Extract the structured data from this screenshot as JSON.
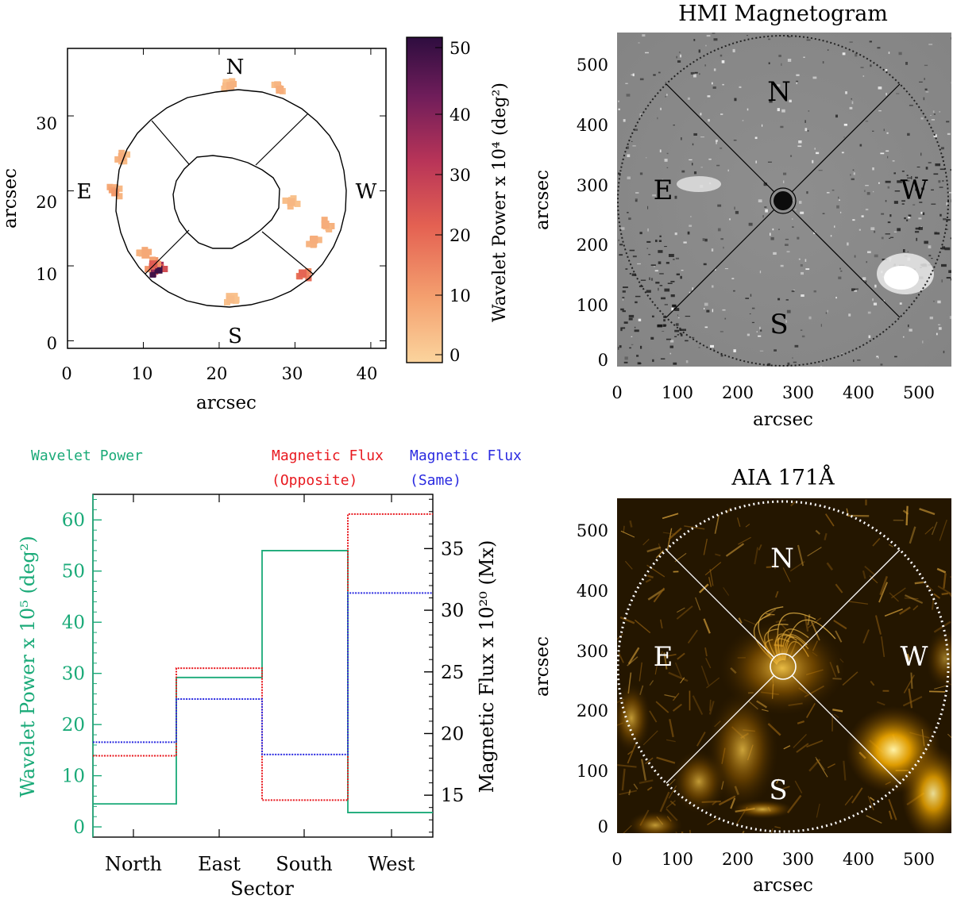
{
  "colors": {
    "wavelet": "#1aaa78",
    "opposite": "#e8191f",
    "same": "#2a2ae0",
    "magneto_bg": "#8a8a8a",
    "aia_bg": "#241600",
    "heat_low": "#fbd49d",
    "heat_high": "#2e0d3f"
  },
  "panel_a": {
    "xlabel": "arcsec",
    "ylabel": "arcsec",
    "xticks": [
      "0",
      "10",
      "20",
      "30",
      "40"
    ],
    "yticks": [
      "0",
      "10",
      "20",
      "30"
    ],
    "dirs": {
      "n": "N",
      "s": "S",
      "e": "E",
      "w": "W"
    },
    "colorbar_label": "Wavelet Power x 10⁴ (deg²)",
    "colorbar_ticks": [
      "0",
      "10",
      "20",
      "30",
      "40",
      "50"
    ]
  },
  "panel_b": {
    "title": "HMI Magnetogram",
    "xlabel": "arcsec",
    "ylabel": "arcsec",
    "xticks": [
      "0",
      "100",
      "200",
      "300",
      "400",
      "500"
    ],
    "yticks": [
      "0",
      "100",
      "200",
      "300",
      "400",
      "500"
    ],
    "dirs": {
      "n": "N",
      "s": "S",
      "e": "E",
      "w": "W"
    }
  },
  "panel_d": {
    "title": "AIA 171Å",
    "xlabel": "arcsec",
    "ylabel": "arcsec",
    "xticks": [
      "0",
      "100",
      "200",
      "300",
      "400",
      "500"
    ],
    "yticks": [
      "0",
      "100",
      "200",
      "300",
      "400",
      "500"
    ],
    "dirs": {
      "n": "N",
      "s": "S",
      "e": "E",
      "w": "W"
    }
  },
  "chart_data": [
    {
      "type": "heatmap",
      "title": "",
      "xlabel": "arcsec",
      "ylabel": "arcsec",
      "xlim": [
        0,
        42
      ],
      "ylim": [
        -1,
        39
      ],
      "colorbar": {
        "label": "Wavelet Power x 10⁴ (deg²)",
        "range": [
          -2,
          52
        ]
      },
      "hotspots": [
        {
          "x": 12,
          "y": 9.5,
          "value": 50
        },
        {
          "x": 11.3,
          "y": 10.2,
          "value": 22
        },
        {
          "x": 31,
          "y": 9,
          "value": 20
        },
        {
          "x": 10.3,
          "y": 11.5,
          "value": 7
        },
        {
          "x": 7.2,
          "y": 24.5,
          "value": 6
        },
        {
          "x": 6.3,
          "y": 19.8,
          "value": 10
        },
        {
          "x": 21.5,
          "y": 34,
          "value": 5
        },
        {
          "x": 28,
          "y": 33.5,
          "value": 6
        },
        {
          "x": 32.5,
          "y": 13.5,
          "value": 6
        },
        {
          "x": 34,
          "y": 15.5,
          "value": 6
        },
        {
          "x": 29.5,
          "y": 18.5,
          "value": 4
        },
        {
          "x": 21.5,
          "y": 5.5,
          "value": 3
        }
      ]
    },
    {
      "type": "line",
      "title": "",
      "xlabel": "Sector",
      "categories": [
        "North",
        "East",
        "South",
        "West"
      ],
      "series": [
        {
          "name": "Wavelet Power",
          "axis": "left",
          "values": [
            4.5,
            29.2,
            54.0,
            2.8
          ]
        },
        {
          "name": "Magnetic Flux (Opposite)",
          "axis": "right",
          "values": [
            18.2,
            25.3,
            14.6,
            37.8
          ]
        },
        {
          "name": "Magnetic Flux (Same)",
          "axis": "right",
          "values": [
            19.3,
            22.8,
            18.3,
            31.4
          ]
        }
      ],
      "ylabel_left": "Wavelet Power x 10⁵ (deg²)",
      "ylabel_right": "Magnetic Flux x 10²⁰ (Mx)",
      "ylim_left": [
        -2,
        65
      ],
      "ylim_right": [
        11.6,
        39.4
      ],
      "yticks_left": [
        "0",
        "10",
        "20",
        "30",
        "40",
        "50",
        "60"
      ],
      "yticks_right": [
        "15",
        "20",
        "25",
        "30",
        "35"
      ],
      "legend": [
        {
          "label": "Wavelet Power",
          "color": "#1aaa78"
        },
        {
          "line1": "Magnetic Flux",
          "line2": "(Opposite)",
          "color": "#e8191f"
        },
        {
          "line1": "Magnetic Flux",
          "line2": "(Same)",
          "color": "#2a2ae0"
        }
      ]
    }
  ]
}
